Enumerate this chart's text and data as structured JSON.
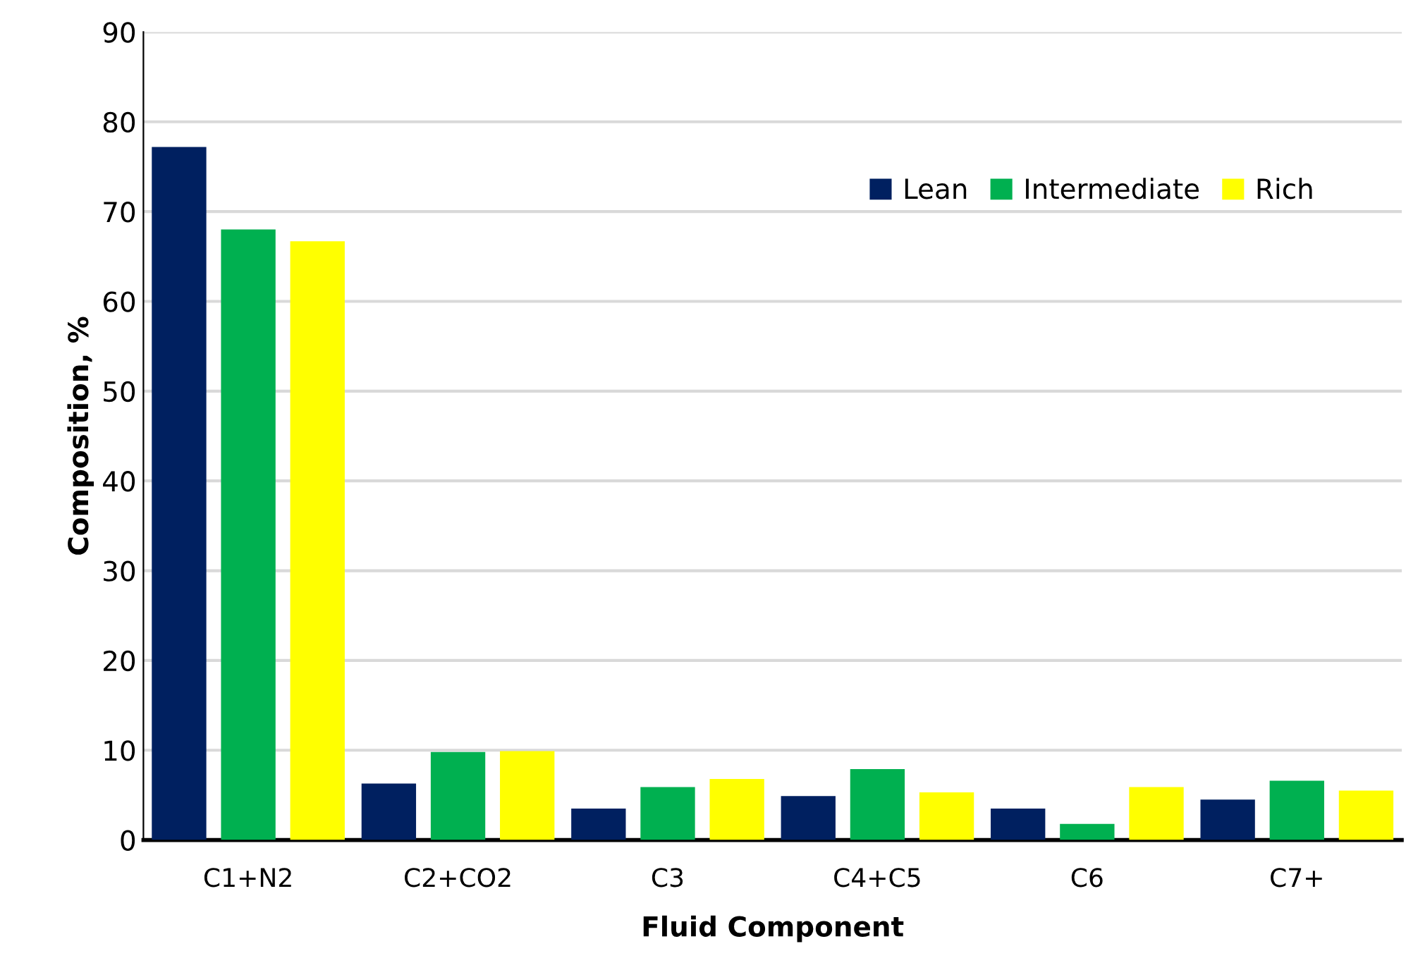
{
  "chart_data": {
    "type": "bar",
    "xlabel": "Fluid Component",
    "ylabel": "Composition, %",
    "categories": [
      "C1+N2",
      "C2+CO2",
      "C3",
      "C4+C5",
      "C6",
      "C7+"
    ],
    "series": [
      {
        "name": "Lean",
        "color": "#002060",
        "values": [
          77.2,
          6.3,
          3.5,
          4.9,
          3.5,
          4.5
        ]
      },
      {
        "name": "Intermediate",
        "color": "#00b050",
        "values": [
          68.0,
          9.8,
          5.9,
          7.9,
          1.8,
          6.6
        ]
      },
      {
        "name": "Rich",
        "color": "#ffff00",
        "values": [
          66.7,
          9.9,
          6.8,
          5.3,
          5.9,
          5.5
        ]
      }
    ],
    "ylim": [
      0,
      90
    ],
    "yticks": [
      0,
      10,
      20,
      30,
      40,
      50,
      60,
      70,
      80,
      90
    ],
    "grid": "y",
    "legend": "top right"
  }
}
